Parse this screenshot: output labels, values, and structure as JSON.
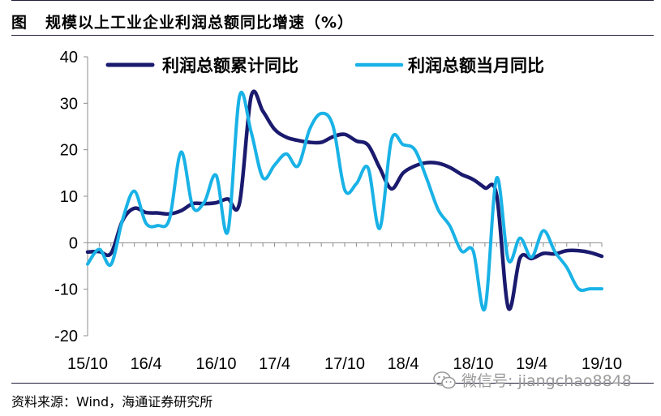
{
  "title": {
    "label": "图",
    "text": "规模以上工业企业利润总额同比增速（%）"
  },
  "source": "资料来源：Wind，海通证券研究所",
  "watermark": {
    "text": "微信号: jiangchao8848",
    "icon": "wechat-icon"
  },
  "chart_data": {
    "type": "line",
    "ylim": [
      -20,
      40
    ],
    "yticks": [
      -20,
      -10,
      0,
      10,
      20,
      30,
      40
    ],
    "x_tick_labels": [
      "15/10",
      "16/4",
      "16/10",
      "17/4",
      "17/10",
      "18/4",
      "18/10",
      "19/4",
      "19/10"
    ],
    "x": [
      "15/10",
      "15/11",
      "15/12",
      "16/2",
      "16/3",
      "16/4",
      "16/5",
      "16/6",
      "16/7",
      "16/8",
      "16/9",
      "16/10",
      "16/11",
      "16/12",
      "17/2",
      "17/3",
      "17/4",
      "17/5",
      "17/6",
      "17/7",
      "17/8",
      "17/9",
      "17/10",
      "17/11",
      "17/12",
      "18/2",
      "18/3",
      "18/4",
      "18/5",
      "18/6",
      "18/7",
      "18/8",
      "18/9",
      "18/10",
      "18/11",
      "18/12",
      "19/2",
      "19/3",
      "19/4",
      "19/5",
      "19/6",
      "19/7",
      "19/8",
      "19/9",
      "19/10"
    ],
    "legend_position": "top",
    "grid": false,
    "colors": {
      "cumulative": "#1a1a6e",
      "monthly": "#19b2e6"
    },
    "series": [
      {
        "name": "利润总额累计同比",
        "color": "#1a1a6e",
        "values": [
          -2.0,
          -1.9,
          -2.3,
          4.8,
          7.4,
          6.5,
          6.4,
          6.2,
          6.9,
          8.4,
          8.4,
          8.6,
          9.4,
          8.5,
          31.5,
          28.3,
          24.4,
          22.7,
          22.0,
          21.6,
          21.6,
          22.8,
          23.3,
          21.9,
          21.0,
          16.1,
          11.6,
          15.0,
          16.5,
          17.2,
          17.1,
          16.2,
          14.7,
          13.6,
          11.8,
          10.3,
          -14.0,
          -3.3,
          -3.4,
          -2.3,
          -2.4,
          -1.7,
          -1.7,
          -2.1,
          -2.9
        ]
      },
      {
        "name": "利润总额当月同比",
        "color": "#19b2e6",
        "values": [
          -4.6,
          -1.4,
          -4.7,
          5.0,
          11.1,
          4.2,
          3.7,
          5.1,
          19.5,
          7.7,
          8.8,
          14.5,
          2.4,
          31.5,
          23.8,
          14.0,
          16.7,
          19.1,
          16.5,
          24.4,
          27.8,
          25.1,
          11.4,
          12.7,
          16.1,
          3.1,
          22.1,
          21.1,
          20.0,
          13.9,
          7.1,
          3.6,
          -1.8,
          -1.8,
          -14.1,
          13.9,
          -3.7,
          1.0,
          -3.1,
          2.6,
          -2.0,
          -5.3,
          -9.9,
          -9.9,
          -9.9
        ]
      }
    ]
  }
}
